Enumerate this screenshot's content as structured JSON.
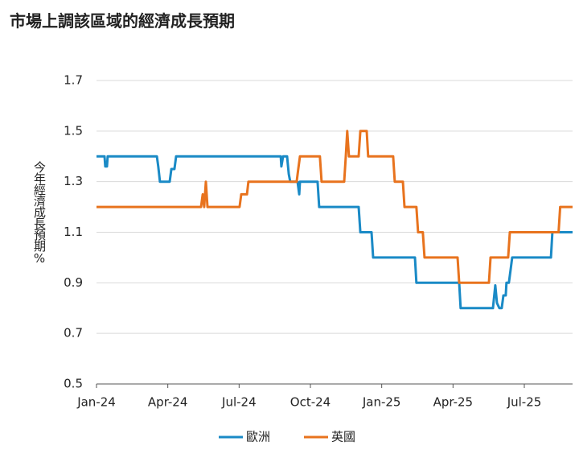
{
  "chart_data": {
    "type": "line",
    "title": "市場上調該區域的經濟成長預期",
    "y_label": "今年經濟成長預期%",
    "xlim": [
      0,
      20.03
    ],
    "xticks": [
      {
        "value": 0,
        "label": "Jan-24"
      },
      {
        "value": 3,
        "label": "Apr-24"
      },
      {
        "value": 6,
        "label": "Jul-24"
      },
      {
        "value": 9,
        "label": "Oct-24"
      },
      {
        "value": 12,
        "label": "Jan-25"
      },
      {
        "value": 15,
        "label": "Apr-25"
      },
      {
        "value": 18,
        "label": "Jul-25"
      }
    ],
    "ylim": [
      0.5,
      1.7
    ],
    "yticks": [
      0.5,
      0.7,
      0.9,
      1.1,
      1.3,
      1.5,
      1.7
    ],
    "grid": true,
    "legend": "bottom",
    "series": [
      {
        "name": "歐洲",
        "color": "#1a8ac6",
        "x": [
          0,
          0.34,
          0.37,
          0.44,
          0.47,
          2.54,
          2.6,
          2.67,
          3.08,
          3.15,
          3.28,
          3.35,
          7.75,
          7.78,
          7.85,
          8.02,
          8.09,
          8.15,
          8.46,
          8.53,
          8.56,
          9.3,
          9.37,
          11.03,
          11.1,
          11.57,
          11.64,
          13.4,
          13.46,
          15.26,
          15.32,
          16.68,
          16.78,
          16.85,
          16.95,
          17.05,
          17.12,
          17.22,
          17.25,
          17.35,
          17.42,
          17.49,
          19.12,
          19.18,
          20.03
        ],
        "values": [
          1.4,
          1.4,
          1.36,
          1.36,
          1.4,
          1.4,
          1.36,
          1.3,
          1.3,
          1.35,
          1.35,
          1.4,
          1.4,
          1.36,
          1.4,
          1.4,
          1.33,
          1.3,
          1.3,
          1.25,
          1.3,
          1.3,
          1.2,
          1.2,
          1.1,
          1.1,
          1.0,
          1.0,
          0.9,
          0.9,
          0.8,
          0.8,
          0.89,
          0.82,
          0.8,
          0.8,
          0.85,
          0.85,
          0.9,
          0.9,
          0.95,
          1.0,
          1.0,
          1.1,
          1.1
        ]
      },
      {
        "name": "英國",
        "color": "#e8731e",
        "x": [
          0,
          4.4,
          4.47,
          4.53,
          4.6,
          4.67,
          6.02,
          6.09,
          6.33,
          6.39,
          8.42,
          8.49,
          8.56,
          9.4,
          9.47,
          10.42,
          10.49,
          10.55,
          10.62,
          11.03,
          11.1,
          11.37,
          11.43,
          12.48,
          12.55,
          12.89,
          12.96,
          13.46,
          13.53,
          13.73,
          13.8,
          15.19,
          15.26,
          16.51,
          16.58,
          17.32,
          17.39,
          19.44,
          19.51,
          20.03
        ],
        "values": [
          1.2,
          1.2,
          1.25,
          1.2,
          1.3,
          1.2,
          1.2,
          1.25,
          1.25,
          1.3,
          1.3,
          1.35,
          1.4,
          1.4,
          1.3,
          1.3,
          1.4,
          1.5,
          1.4,
          1.4,
          1.5,
          1.5,
          1.4,
          1.4,
          1.3,
          1.3,
          1.2,
          1.2,
          1.1,
          1.1,
          1.0,
          1.0,
          0.9,
          0.9,
          1.0,
          1.0,
          1.1,
          1.1,
          1.2,
          1.2
        ]
      }
    ]
  }
}
